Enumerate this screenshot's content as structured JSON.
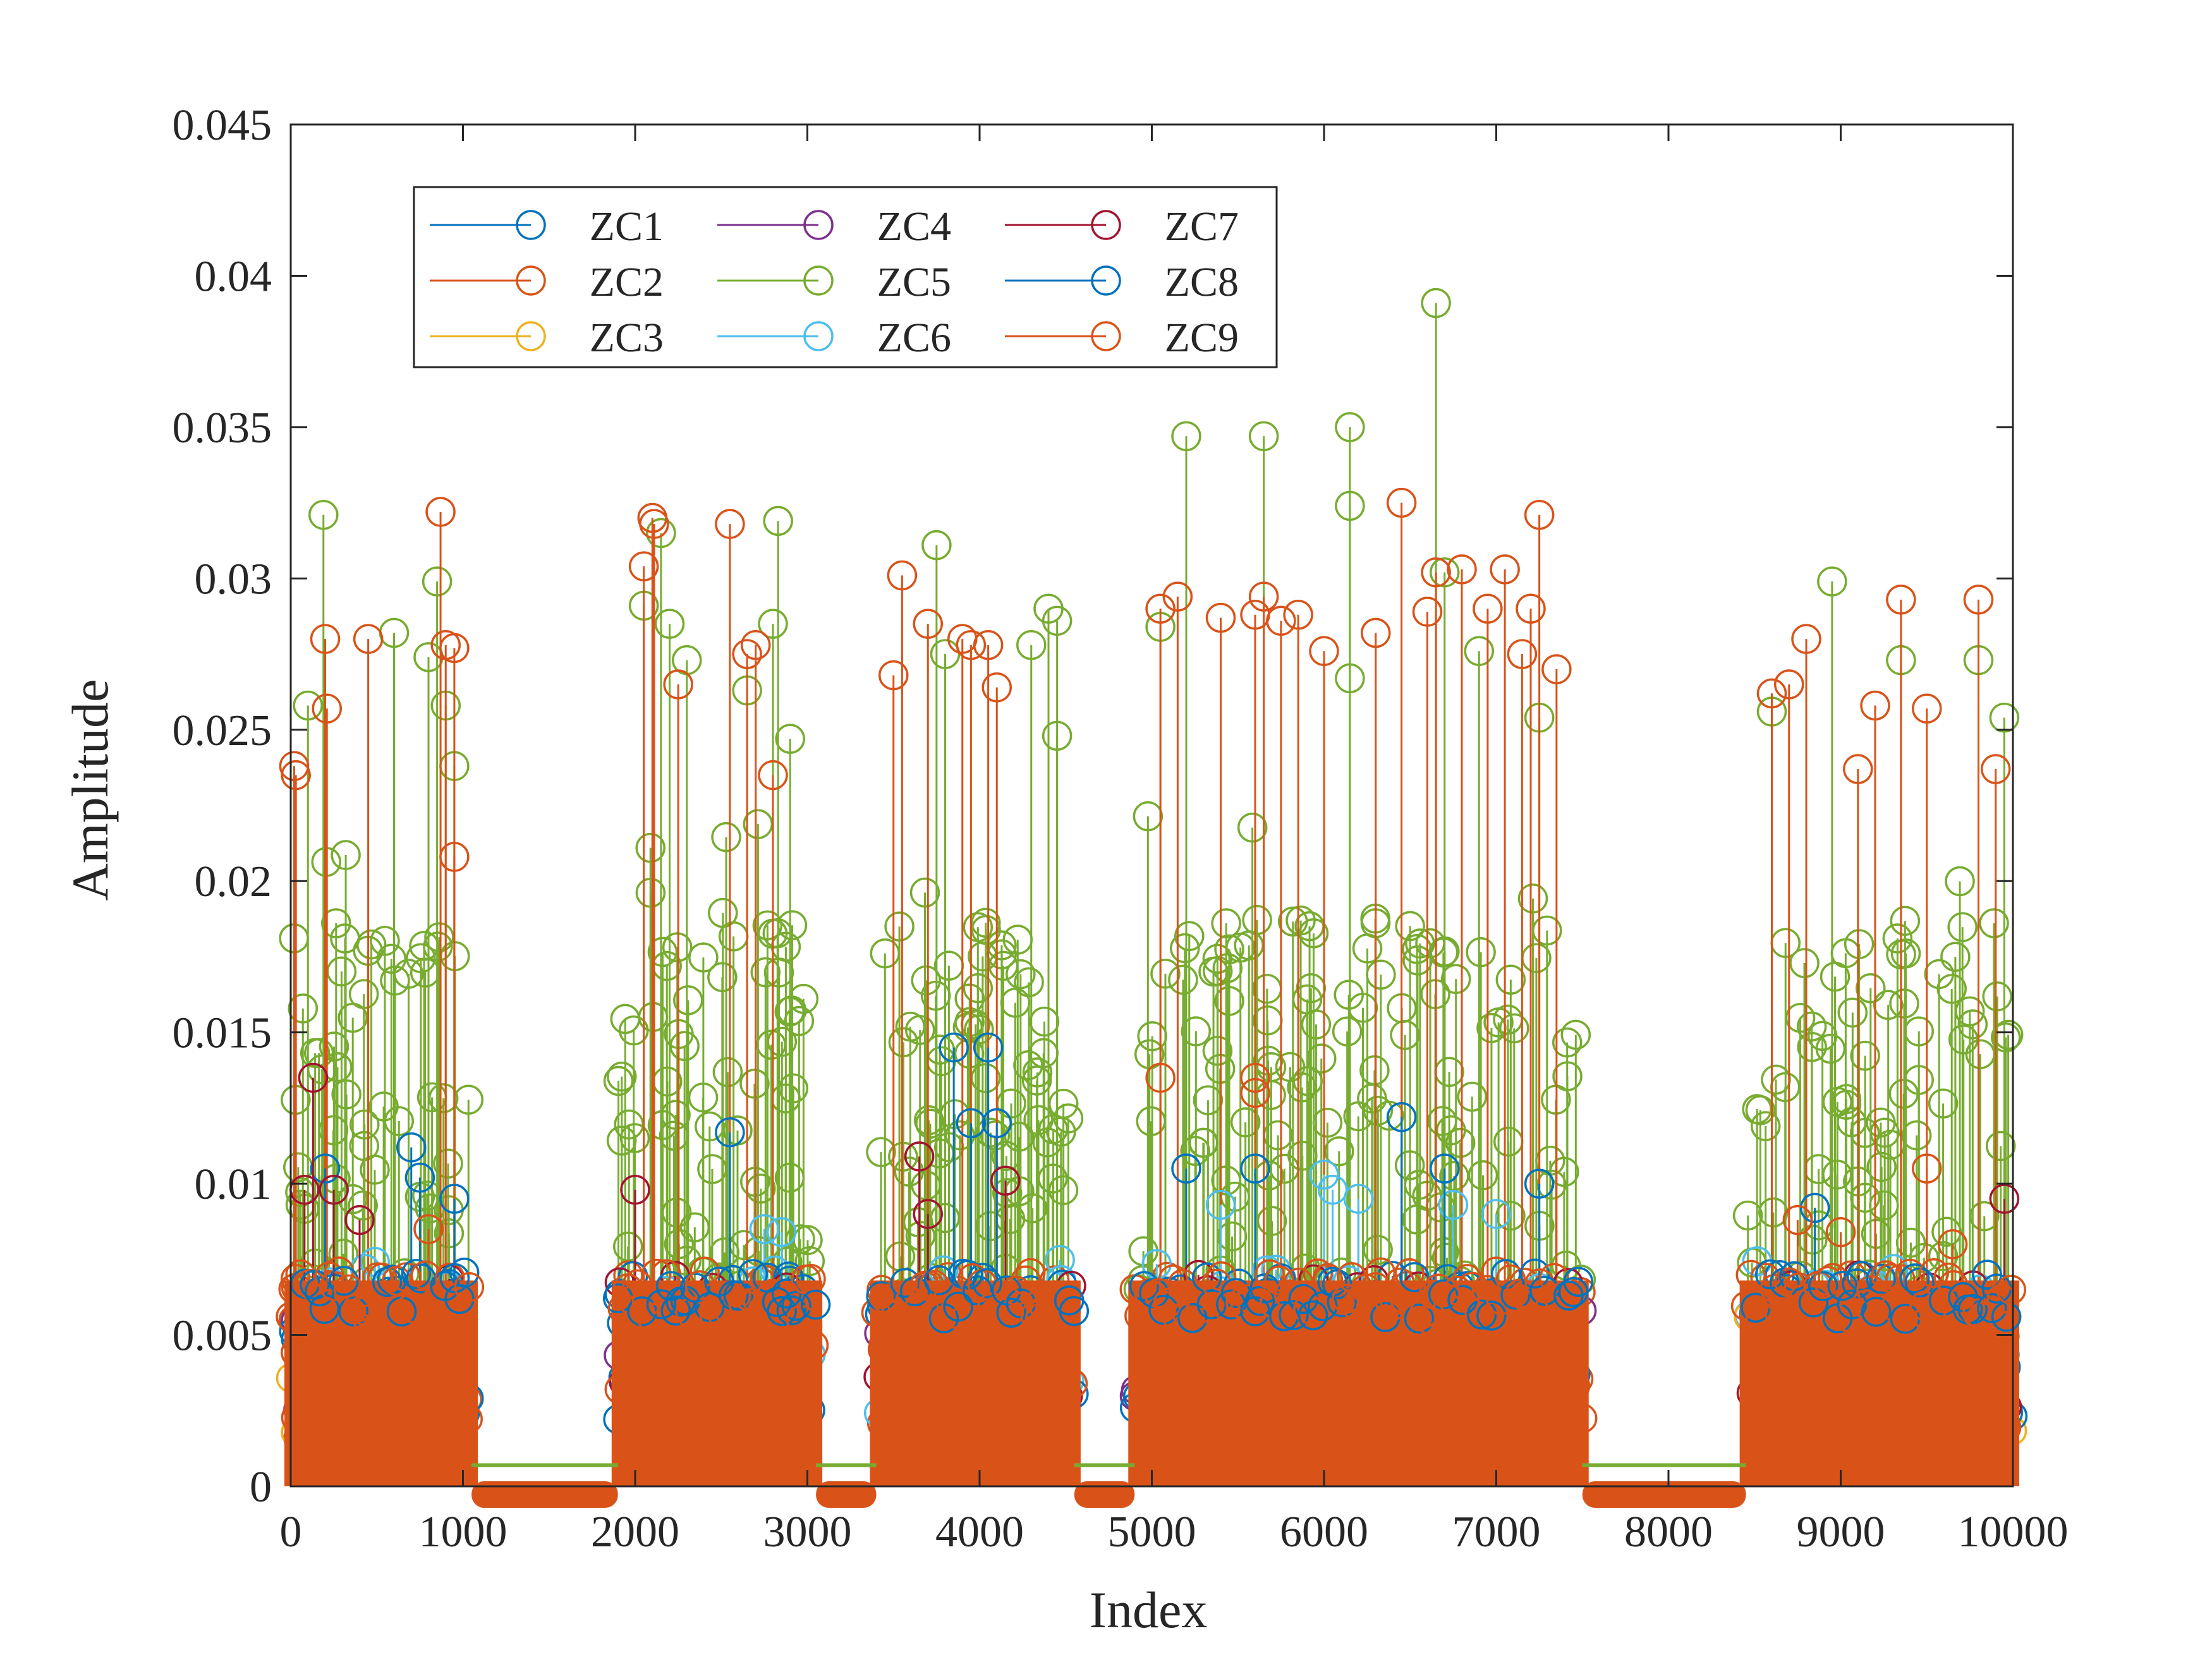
{
  "chart_data": {
    "type": "stem",
    "title": "",
    "xlabel": "Index",
    "ylabel": "Amplitude",
    "xlim": [
      0,
      10000
    ],
    "ylim": [
      0,
      0.045
    ],
    "xticks": [
      0,
      1000,
      2000,
      3000,
      4000,
      5000,
      6000,
      7000,
      8000,
      9000,
      10000
    ],
    "xtick_labels": [
      "0",
      "1000",
      "2000",
      "3000",
      "4000",
      "5000",
      "6000",
      "7000",
      "8000",
      "9000",
      "10000"
    ],
    "yticks": [
      0,
      0.005,
      0.01,
      0.015,
      0.02,
      0.025,
      0.03,
      0.035,
      0.04,
      0.045
    ],
    "ytick_labels": [
      "0",
      "0.005",
      "0.01",
      "0.015",
      "0.02",
      "0.025",
      "0.03",
      "0.035",
      "0.04",
      "0.045"
    ],
    "grid": false,
    "legend_position": "top-left",
    "legend_columns": 3,
    "active_segments": [
      [
        0,
        1050
      ],
      [
        1900,
        3050
      ],
      [
        3400,
        4550
      ],
      [
        4900,
        7500
      ],
      [
        8450,
        10000
      ]
    ],
    "inactive_level": 0.0007,
    "series": [
      {
        "name": "ZC1",
        "color": "#0072BD",
        "typical_max": 0.007,
        "peaks": [
          [
            1080,
            0.0
          ],
          [
            500,
            0.0
          ]
        ],
        "highlights": [
          [
            200,
            0.0105
          ],
          [
            700,
            0.0112
          ],
          [
            750,
            0.0102
          ],
          [
            2550,
            0.0117
          ],
          [
            3850,
            0.0145
          ],
          [
            4050,
            0.0145
          ],
          [
            3950,
            0.012
          ],
          [
            4100,
            0.012
          ],
          [
            6450,
            0.0122
          ],
          [
            6700,
            0.0105
          ],
          [
            5200,
            0.0105
          ],
          [
            5600,
            0.0105
          ]
        ]
      },
      {
        "name": "ZC2",
        "color": "#D95319",
        "typical_max": 0.007,
        "peaks": [
          [
            20,
            0.0238
          ],
          [
            30,
            0.0235
          ],
          [
            200,
            0.028
          ],
          [
            210,
            0.0257
          ],
          [
            450,
            0.028
          ],
          [
            870,
            0.0322
          ],
          [
            900,
            0.0278
          ],
          [
            950,
            0.0277
          ],
          [
            950,
            0.0208
          ],
          [
            2050,
            0.0304
          ],
          [
            2100,
            0.032
          ],
          [
            2110,
            0.0318
          ],
          [
            2550,
            0.0318
          ],
          [
            2650,
            0.0275
          ],
          [
            2700,
            0.0278
          ],
          [
            2250,
            0.0265
          ],
          [
            2800,
            0.0235
          ],
          [
            3500,
            0.0268
          ],
          [
            3550,
            0.0301
          ],
          [
            3700,
            0.0285
          ],
          [
            3900,
            0.028
          ],
          [
            3950,
            0.0278
          ],
          [
            4050,
            0.0278
          ],
          [
            4100,
            0.0264
          ],
          [
            5050,
            0.029
          ],
          [
            5150,
            0.0294
          ],
          [
            5400,
            0.0287
          ],
          [
            5650,
            0.0294
          ],
          [
            5600,
            0.0288
          ],
          [
            5750,
            0.0286
          ],
          [
            5850,
            0.0288
          ],
          [
            6000,
            0.0276
          ],
          [
            6300,
            0.0282
          ],
          [
            6450,
            0.0325
          ],
          [
            6600,
            0.0289
          ],
          [
            6650,
            0.0302
          ],
          [
            6800,
            0.0303
          ],
          [
            6950,
            0.029
          ],
          [
            7050,
            0.0303
          ],
          [
            7150,
            0.0275
          ],
          [
            7200,
            0.029
          ],
          [
            7250,
            0.0321
          ],
          [
            7350,
            0.027
          ],
          [
            8600,
            0.0262
          ],
          [
            8700,
            0.0265
          ],
          [
            8800,
            0.028
          ],
          [
            9100,
            0.0237
          ],
          [
            9200,
            0.0258
          ],
          [
            9350,
            0.0293
          ],
          [
            9500,
            0.0257
          ],
          [
            9800,
            0.0293
          ],
          [
            9900,
            0.0237
          ],
          [
            5050,
            0.0135
          ],
          [
            5600,
            0.0135
          ],
          [
            5600,
            0.013
          ],
          [
            9500,
            0.0105
          ]
        ]
      },
      {
        "name": "ZC3",
        "color": "#EDB120",
        "typical_max": 0.006,
        "peaks": []
      },
      {
        "name": "ZC4",
        "color": "#7E2F8E",
        "typical_max": 0.006,
        "peaks": []
      },
      {
        "name": "ZC5",
        "color": "#77AC30",
        "typical_max": 0.019,
        "peaks": [
          [
            190,
            0.0321
          ],
          [
            100,
            0.0258
          ],
          [
            600,
            0.0282
          ],
          [
            800,
            0.0274
          ],
          [
            850,
            0.0299
          ],
          [
            900,
            0.0258
          ],
          [
            950,
            0.0238
          ],
          [
            2050,
            0.0291
          ],
          [
            2150,
            0.0315
          ],
          [
            2200,
            0.0285
          ],
          [
            2300,
            0.0273
          ],
          [
            2650,
            0.0263
          ],
          [
            2800,
            0.0285
          ],
          [
            2830,
            0.0319
          ],
          [
            2900,
            0.0247
          ],
          [
            3750,
            0.0311
          ],
          [
            3800,
            0.0275
          ],
          [
            4300,
            0.0278
          ],
          [
            4400,
            0.029
          ],
          [
            4450,
            0.0286
          ],
          [
            4450,
            0.0248
          ],
          [
            5050,
            0.0284
          ],
          [
            5200,
            0.0347
          ],
          [
            5650,
            0.0347
          ],
          [
            6150,
            0.035
          ],
          [
            6150,
            0.0324
          ],
          [
            6150,
            0.0267
          ],
          [
            6650,
            0.0391
          ],
          [
            6700,
            0.0302
          ],
          [
            6900,
            0.0276
          ],
          [
            7250,
            0.0254
          ],
          [
            8600,
            0.0256
          ],
          [
            8950,
            0.0299
          ],
          [
            9350,
            0.0273
          ],
          [
            9800,
            0.0273
          ],
          [
            9950,
            0.0254
          ]
        ]
      },
      {
        "name": "ZC6",
        "color": "#4DBEEE",
        "typical_max": 0.0075,
        "highlights": [
          [
            2750,
            0.0085
          ],
          [
            2850,
            0.0084
          ],
          [
            5400,
            0.0093
          ],
          [
            6000,
            0.0103
          ],
          [
            6050,
            0.0098
          ],
          [
            6200,
            0.0095
          ],
          [
            6750,
            0.0093
          ],
          [
            7000,
            0.009
          ]
        ]
      },
      {
        "name": "ZC7",
        "color": "#A2142F",
        "typical_max": 0.007,
        "highlights": [
          [
            130,
            0.0135
          ],
          [
            80,
            0.0098
          ],
          [
            250,
            0.0098
          ],
          [
            400,
            0.0088
          ],
          [
            2000,
            0.0098
          ],
          [
            3650,
            0.0109
          ],
          [
            3700,
            0.009
          ],
          [
            4150,
            0.0101
          ],
          [
            9950,
            0.0095
          ]
        ]
      },
      {
        "name": "ZC8",
        "color": "#0072BD",
        "typical_max": 0.0065,
        "highlights": [
          [
            950,
            0.0095
          ],
          [
            7250,
            0.01
          ],
          [
            8850,
            0.0092
          ]
        ]
      },
      {
        "name": "ZC9",
        "color": "#D95319",
        "typical_max": 0.006,
        "highlights": [
          [
            800,
            0.0085
          ],
          [
            8750,
            0.0088
          ],
          [
            9000,
            0.0084
          ],
          [
            9650,
            0.008
          ]
        ]
      }
    ]
  }
}
